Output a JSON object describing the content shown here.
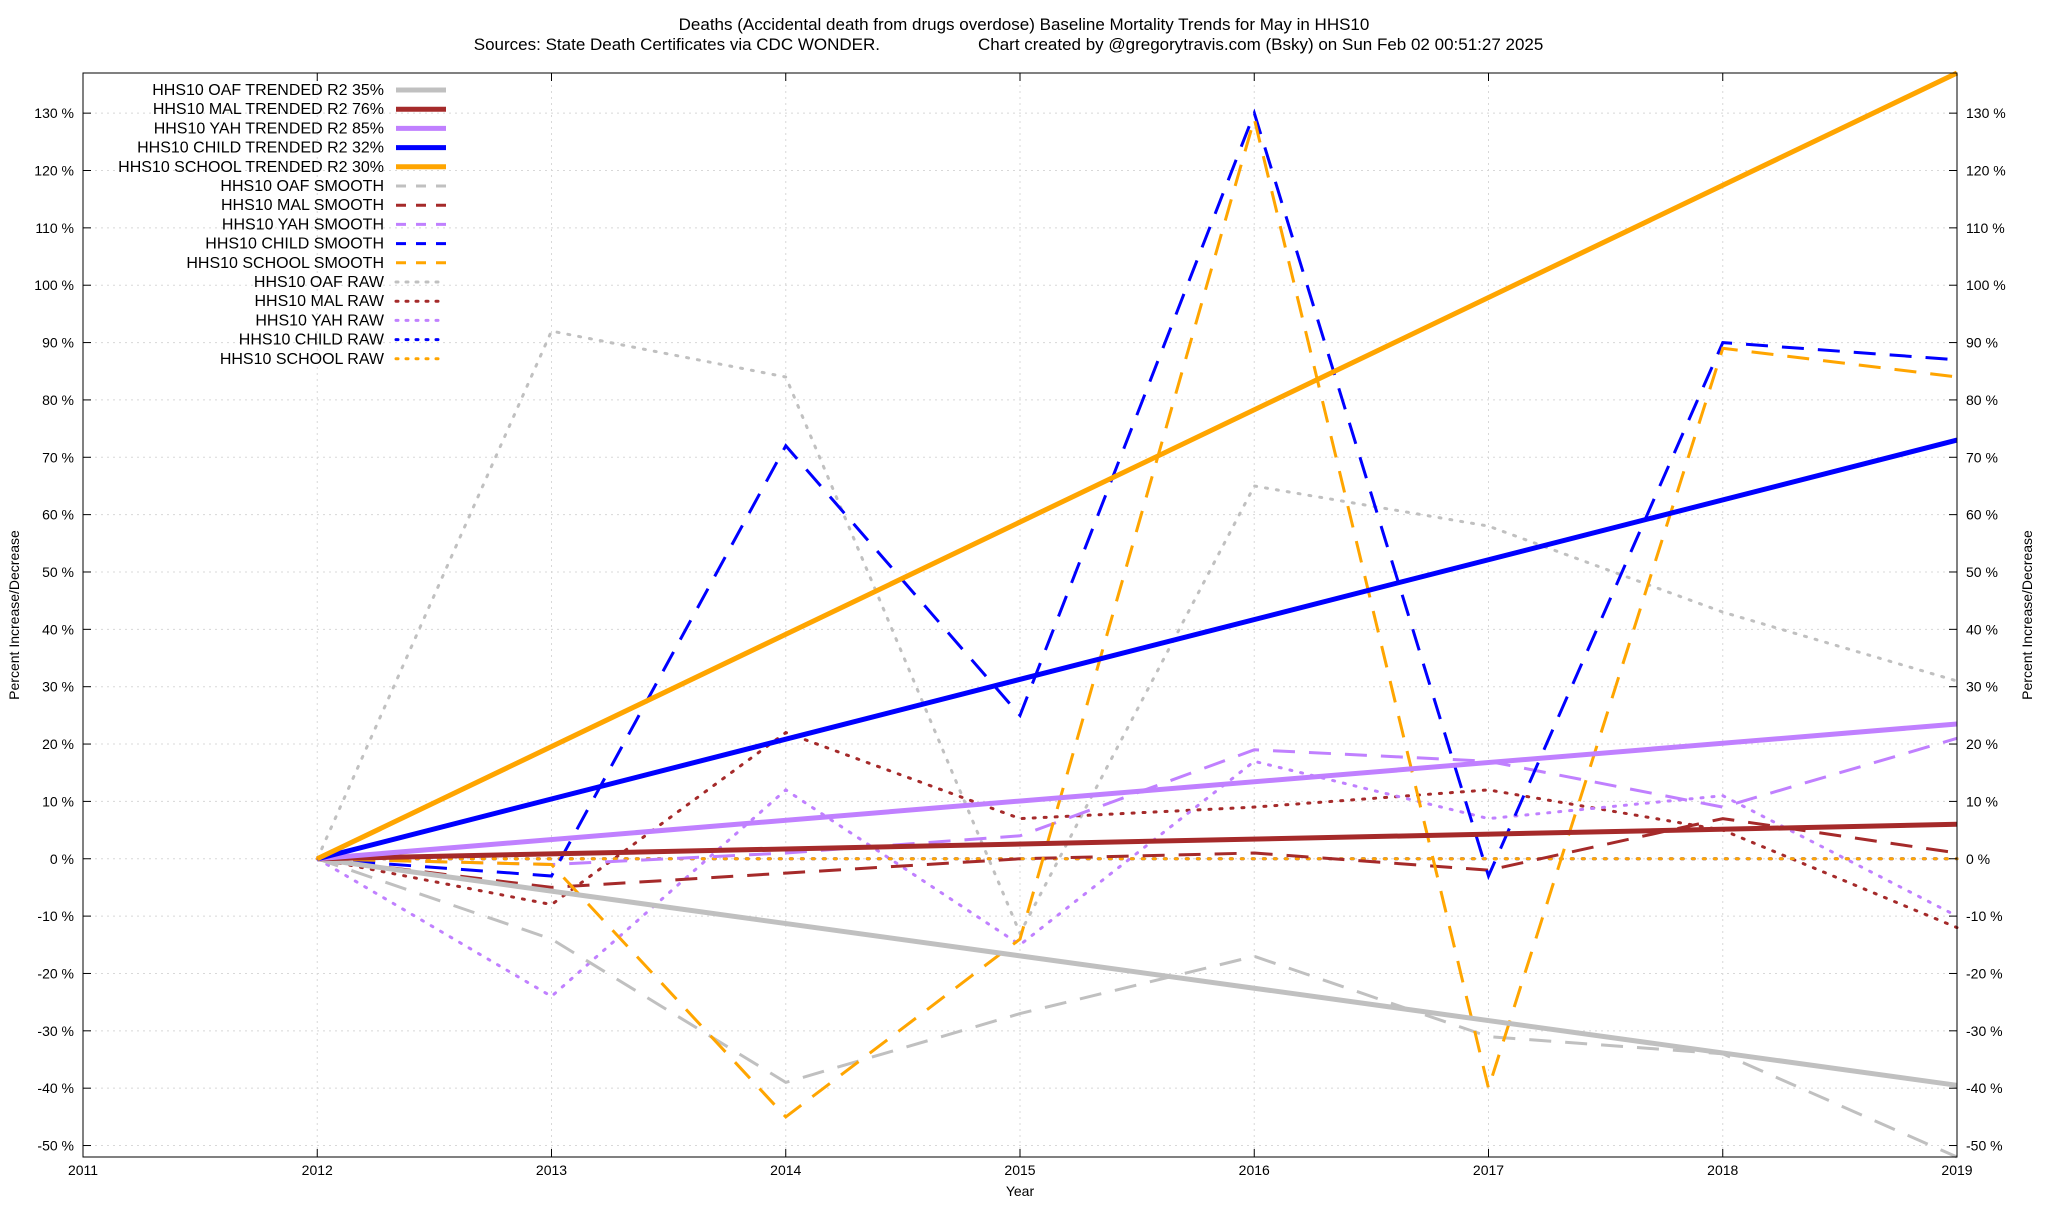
{
  "chart_data": {
    "type": "line",
    "title": "Deaths (Accidental death from drugs overdose)  Baseline Mortality Trends for May in HHS10",
    "subtitle_left": "Sources: State Death Certificates via CDC WONDER.",
    "subtitle_right": "Chart created by @gregorytravis.com (Bsky) on Sun Feb 02 00:51:27 2025",
    "xlabel": "Year",
    "ylabel_left": "Percent Increase/Decrease",
    "ylabel_right": "Percent Increase/Decrease",
    "xlim": [
      2011,
      2019
    ],
    "ylim": [
      -52,
      137
    ],
    "x_ticks": [
      2011,
      2012,
      2013,
      2014,
      2015,
      2016,
      2017,
      2018,
      2019
    ],
    "y_ticks": [
      -50,
      -40,
      -30,
      -20,
      -10,
      0,
      10,
      20,
      30,
      40,
      50,
      60,
      70,
      80,
      90,
      100,
      110,
      120,
      130
    ],
    "y_tick_suffix": " %",
    "grid": true,
    "legend_position": "top-left",
    "colors": {
      "oaf": "#c0c0c0",
      "mal": "#a52a2a",
      "yah": "#c080ff",
      "child": "#0000ff",
      "school": "#ffa500"
    },
    "series": [
      {
        "name": "HHS10 OAF TRENDED R2  35%",
        "color": "#c0c0c0",
        "style": "solid",
        "x": [
          2012,
          2019
        ],
        "y": [
          0,
          -39.5
        ]
      },
      {
        "name": "HHS10 MAL TRENDED R2  76%",
        "color": "#a52a2a",
        "style": "solid",
        "x": [
          2012,
          2019
        ],
        "y": [
          0,
          6
        ]
      },
      {
        "name": "HHS10 YAH TRENDED R2  85%",
        "color": "#c080ff",
        "style": "solid",
        "x": [
          2012,
          2019
        ],
        "y": [
          0,
          23.5
        ]
      },
      {
        "name": "HHS10 CHILD TRENDED R2  32%",
        "color": "#0000ff",
        "style": "solid",
        "x": [
          2012,
          2019
        ],
        "y": [
          0,
          73
        ]
      },
      {
        "name": "HHS10 SCHOOL TRENDED R2  30%",
        "color": "#ffa500",
        "style": "solid",
        "x": [
          2012,
          2019
        ],
        "y": [
          0,
          137
        ]
      },
      {
        "name": "HHS10 OAF SMOOTH",
        "color": "#c0c0c0",
        "style": "dashed",
        "x": [
          2012,
          2013,
          2014,
          2015,
          2016,
          2017,
          2018,
          2019
        ],
        "y": [
          0,
          -14,
          -39,
          -27,
          -17,
          -31,
          -34,
          -52
        ]
      },
      {
        "name": "HHS10 MAL SMOOTH",
        "color": "#a52a2a",
        "style": "dashed",
        "x": [
          2012,
          2013,
          2014,
          2015,
          2016,
          2017,
          2018,
          2019
        ],
        "y": [
          0,
          -5,
          -2.5,
          0,
          1,
          -2,
          7,
          1
        ]
      },
      {
        "name": "HHS10 YAH SMOOTH",
        "color": "#c080ff",
        "style": "dashed",
        "x": [
          2012,
          2013,
          2014,
          2015,
          2016,
          2017,
          2018,
          2019
        ],
        "y": [
          0,
          -1,
          1,
          4,
          19,
          17,
          9,
          21
        ]
      },
      {
        "name": "HHS10 CHILD SMOOTH",
        "color": "#0000ff",
        "style": "dashed",
        "x": [
          2012,
          2013,
          2014,
          2015,
          2016,
          2017,
          2018,
          2019
        ],
        "y": [
          0,
          -3,
          72,
          25,
          130,
          -3,
          90,
          87
        ]
      },
      {
        "name": "HHS10 SCHOOL SMOOTH",
        "color": "#ffa500",
        "style": "dashed",
        "x": [
          2012,
          2013,
          2014,
          2015,
          2016,
          2017,
          2018,
          2019
        ],
        "y": [
          0,
          -1,
          -45,
          -14,
          129,
          -40,
          89,
          84
        ]
      },
      {
        "name": "HHS10 OAF RAW",
        "color": "#c0c0c0",
        "style": "dotted",
        "x": [
          2012,
          2013,
          2014,
          2015,
          2016,
          2017,
          2018,
          2019
        ],
        "y": [
          0,
          92,
          84,
          -13,
          65,
          58,
          43,
          31
        ]
      },
      {
        "name": "HHS10 MAL RAW",
        "color": "#a52a2a",
        "style": "dotted",
        "x": [
          2012,
          2013,
          2014,
          2015,
          2016,
          2017,
          2018,
          2019
        ],
        "y": [
          0,
          -8,
          22,
          7,
          9,
          12,
          5,
          -12
        ]
      },
      {
        "name": "HHS10 YAH RAW",
        "color": "#c080ff",
        "style": "dotted",
        "x": [
          2012,
          2013,
          2014,
          2015,
          2016,
          2017,
          2018,
          2019
        ],
        "y": [
          0,
          -24,
          12,
          -15,
          17,
          7,
          11,
          -10
        ]
      },
      {
        "name": "HHS10 CHILD RAW",
        "color": "#0000ff",
        "style": "dotted",
        "x": [
          2012,
          2013,
          2014,
          2015,
          2016,
          2017,
          2018,
          2019
        ],
        "y": [
          0,
          0,
          0,
          0,
          0,
          0,
          0,
          0
        ]
      },
      {
        "name": "HHS10 SCHOOL RAW",
        "color": "#ffa500",
        "style": "dotted",
        "x": [
          2012,
          2013,
          2014,
          2015,
          2016,
          2017,
          2018,
          2019
        ],
        "y": [
          0,
          0,
          0,
          0,
          0,
          0,
          0,
          0
        ]
      }
    ]
  }
}
